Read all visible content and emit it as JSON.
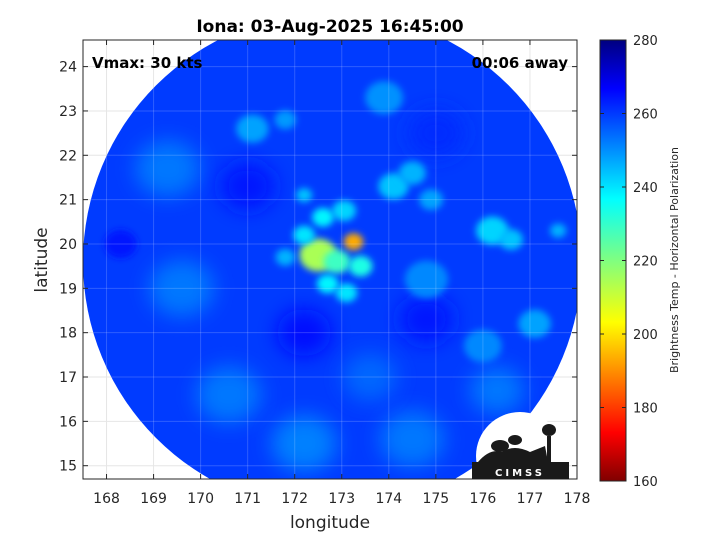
{
  "chart_data": {
    "type": "heatmap",
    "title": "Iona: 03-Aug-2025 16:45:00",
    "xlabel": "longitude",
    "ylabel": "latitude",
    "xlim": [
      167.5,
      178
    ],
    "ylim": [
      14.7,
      24.6
    ],
    "xticks": [
      "168",
      "169",
      "170",
      "171",
      "172",
      "173",
      "174",
      "175",
      "176",
      "177",
      "178"
    ],
    "yticks": [
      "15",
      "16",
      "17",
      "18",
      "19",
      "20",
      "21",
      "22",
      "23",
      "24"
    ],
    "grid": true,
    "colorbar": {
      "label": "Brightness Temp - Horizontal Polarization",
      "range": [
        160,
        280
      ],
      "ticks": [
        "160",
        "180",
        "200",
        "220",
        "240",
        "260",
        "280"
      ],
      "colormap": "jet"
    },
    "annotations": {
      "top_left": "Vmax: 30 kts",
      "top_right": "00:06 away"
    },
    "swath": {
      "center_lon": 172.8,
      "center_lat": 19.6,
      "radius_deg": 5.3
    },
    "background_tb": 258,
    "features": [
      {
        "lon": 172.5,
        "lat": 19.75,
        "tb": 215,
        "r": 0.35
      },
      {
        "lon": 173.25,
        "lat": 20.05,
        "tb": 195,
        "r": 0.18
      },
      {
        "lon": 172.9,
        "lat": 19.6,
        "tb": 228,
        "r": 0.25
      },
      {
        "lon": 173.4,
        "lat": 19.5,
        "tb": 232,
        "r": 0.22
      },
      {
        "lon": 172.6,
        "lat": 20.6,
        "tb": 236,
        "r": 0.2
      },
      {
        "lon": 173.05,
        "lat": 20.75,
        "tb": 240,
        "r": 0.22
      },
      {
        "lon": 172.7,
        "lat": 19.1,
        "tb": 236,
        "r": 0.2
      },
      {
        "lon": 173.1,
        "lat": 18.9,
        "tb": 238,
        "r": 0.2
      },
      {
        "lon": 172.2,
        "lat": 20.2,
        "tb": 238,
        "r": 0.2
      },
      {
        "lon": 171.8,
        "lat": 19.7,
        "tb": 244,
        "r": 0.18
      },
      {
        "lon": 172.2,
        "lat": 21.1,
        "tb": 242,
        "r": 0.15
      },
      {
        "lon": 174.1,
        "lat": 21.3,
        "tb": 242,
        "r": 0.28
      },
      {
        "lon": 174.5,
        "lat": 21.6,
        "tb": 244,
        "r": 0.25
      },
      {
        "lon": 174.9,
        "lat": 21.0,
        "tb": 246,
        "r": 0.22
      },
      {
        "lon": 176.2,
        "lat": 20.3,
        "tb": 240,
        "r": 0.3
      },
      {
        "lon": 176.6,
        "lat": 20.1,
        "tb": 242,
        "r": 0.22
      },
      {
        "lon": 177.6,
        "lat": 20.3,
        "tb": 244,
        "r": 0.15
      },
      {
        "lon": 171.1,
        "lat": 22.6,
        "tb": 246,
        "r": 0.3
      },
      {
        "lon": 171.8,
        "lat": 22.8,
        "tb": 247,
        "r": 0.2
      },
      {
        "lon": 173.9,
        "lat": 23.3,
        "tb": 248,
        "r": 0.35
      },
      {
        "lon": 174.8,
        "lat": 19.2,
        "tb": 249,
        "r": 0.4
      },
      {
        "lon": 177.1,
        "lat": 18.2,
        "tb": 246,
        "r": 0.3
      },
      {
        "lon": 176.0,
        "lat": 17.7,
        "tb": 249,
        "r": 0.35
      },
      {
        "lon": 169.3,
        "lat": 21.7,
        "tb": 251,
        "r": 0.6
      },
      {
        "lon": 169.6,
        "lat": 19.0,
        "tb": 251,
        "r": 0.6
      },
      {
        "lon": 170.6,
        "lat": 16.6,
        "tb": 251,
        "r": 0.6
      },
      {
        "lon": 172.2,
        "lat": 15.5,
        "tb": 250,
        "r": 0.6
      },
      {
        "lon": 174.5,
        "lat": 15.6,
        "tb": 251,
        "r": 0.6
      },
      {
        "lon": 176.3,
        "lat": 16.7,
        "tb": 251,
        "r": 0.5
      },
      {
        "lon": 173.6,
        "lat": 17.0,
        "tb": 253,
        "r": 0.5
      },
      {
        "lon": 168.3,
        "lat": 20.0,
        "tb": 262,
        "r": 0.3
      },
      {
        "lon": 172.2,
        "lat": 18.0,
        "tb": 263,
        "r": 0.5
      },
      {
        "lon": 174.8,
        "lat": 18.3,
        "tb": 262,
        "r": 0.5
      },
      {
        "lon": 171.0,
        "lat": 21.3,
        "tb": 262,
        "r": 0.5
      },
      {
        "lon": 175.0,
        "lat": 22.5,
        "tb": 260,
        "r": 0.5
      }
    ]
  },
  "logo": {
    "text": "CIMSS"
  }
}
